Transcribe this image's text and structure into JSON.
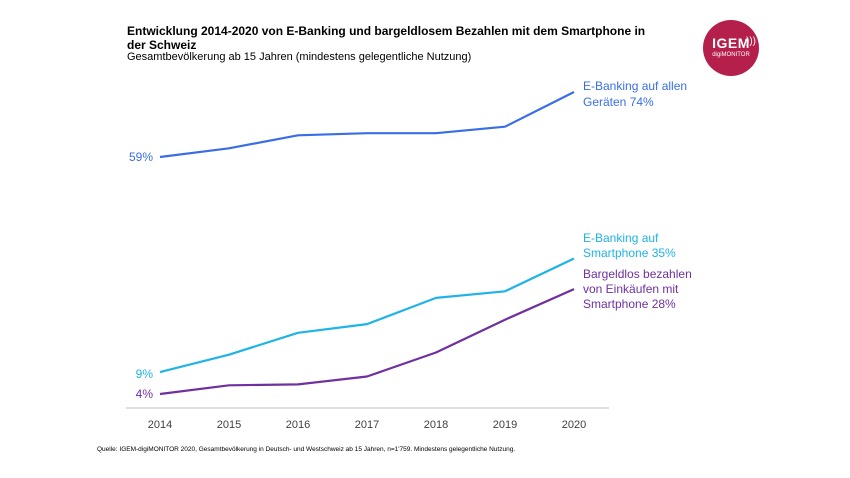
{
  "header": {
    "title": "Entwicklung 2014-2020 von E-Banking und bargeldlosem Bezahlen mit dem Smartphone in der Schweiz",
    "subtitle": "Gesamtbevölkerung ab 15 Jahren (mindestens gelegentliche Nutzung)"
  },
  "logo": {
    "text": "IGEM",
    "subtext": "digiMONITOR",
    "icon": "sound-waves-icon",
    "color": "#b51f4c"
  },
  "source": "Quelle: IGEM-digiMONITOR 2020, Gesamtbevölkerung in Deutsch- und Westschweiz ab 15 Jahren, n=1'759. Mindestens gelegentliche Nutzung.",
  "chart_data": {
    "type": "line",
    "x": [
      "2014",
      "2015",
      "2016",
      "2017",
      "2018",
      "2019",
      "2020"
    ],
    "grid": false,
    "series": [
      {
        "name": "E-Banking auf allen Geräten 74%",
        "label_lines": [
          "E-Banking auf allen",
          "Geräten 74%"
        ],
        "start_label": "59%",
        "color": "#3a6ee6",
        "values": [
          59,
          61,
          64,
          64.5,
          64.5,
          66,
          74
        ]
      },
      {
        "name": "E-Banking auf Smartphone 35%",
        "label_lines": [
          "E-Banking auf",
          "Smartphone 35%"
        ],
        "start_label": "9%",
        "color": "#1fb3e6",
        "values": [
          9,
          13,
          18,
          20,
          26,
          27.5,
          35
        ]
      },
      {
        "name": "Bargeldlos bezahlen von Einkäufen mit Smartphone 28%",
        "label_lines": [
          "Bargeldlos bezahlen",
          "von Einkäufen mit",
          "Smartphone 28%"
        ],
        "start_label": "4%",
        "color": "#7030a0",
        "values": [
          4,
          6,
          6.2,
          8,
          13.5,
          21,
          28
        ]
      }
    ]
  }
}
